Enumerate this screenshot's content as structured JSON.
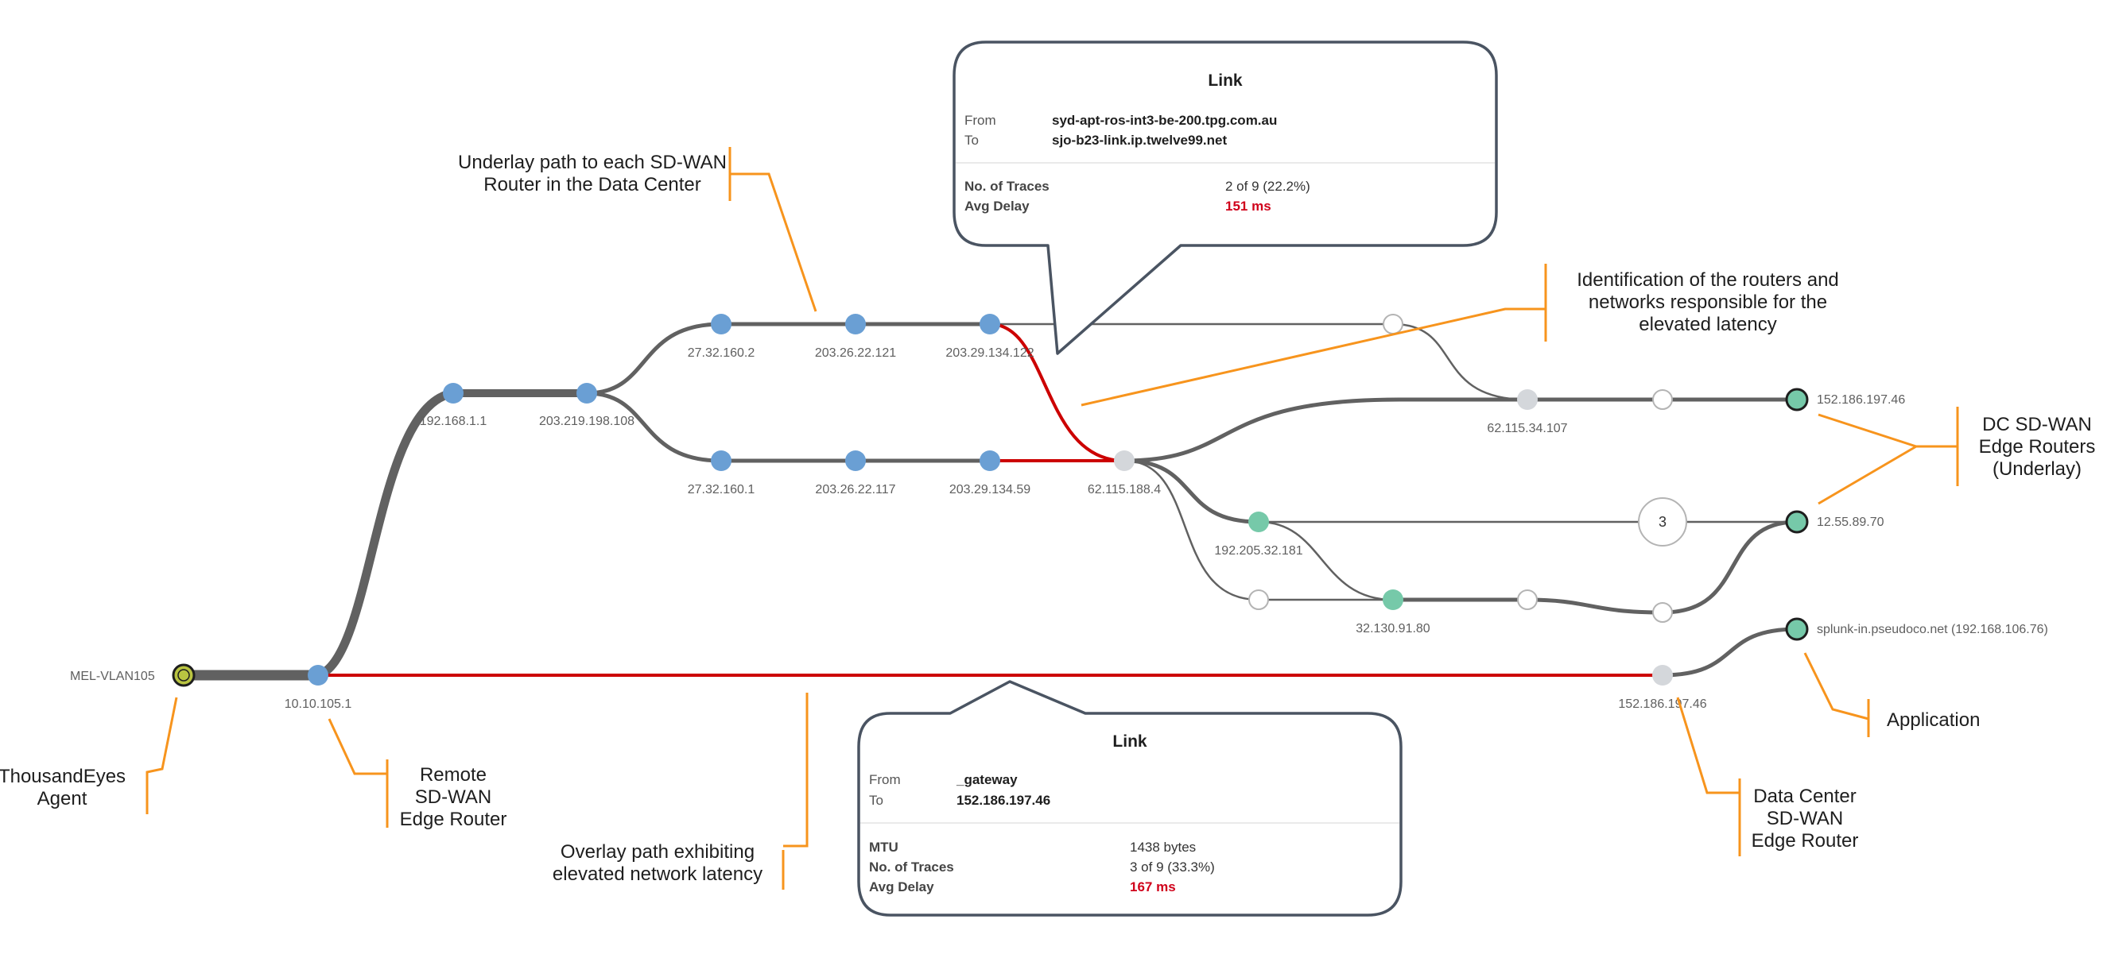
{
  "colors": {
    "path": "#616161",
    "latency": "#cc0000",
    "annotation": "#f7941d",
    "node_blue": "#6a9fd4",
    "node_teal": "#76c9a9",
    "node_grey": "#d4d7db",
    "agent": "#b9c441"
  },
  "nodes": {
    "agent": "MEL-VLAN105",
    "r1": "10.10.105.1",
    "r2": "192.168.1.1",
    "r3": "203.219.198.108",
    "a1": "27.32.160.2",
    "a2": "203.26.22.121",
    "a3": "203.29.134.122",
    "b1": "27.32.160.1",
    "b2": "203.26.22.117",
    "b3": "203.29.134.59",
    "m1": "62.115.188.4",
    "m2": "62.115.34.107",
    "d1": "152.186.197.46",
    "d2": "12.55.89.70",
    "t1": "192.205.32.181",
    "t2": "32.130.91.80",
    "g1": "152.186.197.46",
    "app": "splunk-in.pseudoco.net (192.168.106.76)",
    "count": "3"
  },
  "annotations": {
    "underlay_1": "Underlay path to each SD-WAN",
    "underlay_2": "Router in the Data Center",
    "ident_1": "Identification of the routers and",
    "ident_2": "networks responsible for the",
    "ident_3": "elevated latency",
    "dc_1": "DC SD-WAN",
    "dc_2": "Edge Routers",
    "dc_3": "(Underlay)",
    "te_1": "ThousandEyes",
    "te_2": "Agent",
    "remote_1": "Remote",
    "remote_2": "SD-WAN",
    "remote_3": "Edge Router",
    "overlay_1": "Overlay path exhibiting",
    "overlay_2": "elevated network latency",
    "app": "Application",
    "dcr_1": "Data Center",
    "dcr_2": "SD-WAN",
    "dcr_3": "Edge Router"
  },
  "tooltip_top": {
    "title": "Link",
    "from_label": "From",
    "from_value": "syd-apt-ros-int3-be-200.tpg.com.au",
    "to_label": "To",
    "to_value": "sjo-b23-link.ip.twelve99.net",
    "traces_label": "No. of Traces",
    "traces_value": "2 of 9 (22.2%)",
    "delay_label": "Avg Delay",
    "delay_value": "151 ms"
  },
  "tooltip_bottom": {
    "title": "Link",
    "from_label": "From",
    "from_value": "_gateway",
    "to_label": "To",
    "to_value": "152.186.197.46",
    "mtu_label": "MTU",
    "mtu_value": "1438 bytes",
    "traces_label": "No. of Traces",
    "traces_value": "3 of 9 (33.3%)",
    "delay_label": "Avg Delay",
    "delay_value": "167 ms"
  }
}
